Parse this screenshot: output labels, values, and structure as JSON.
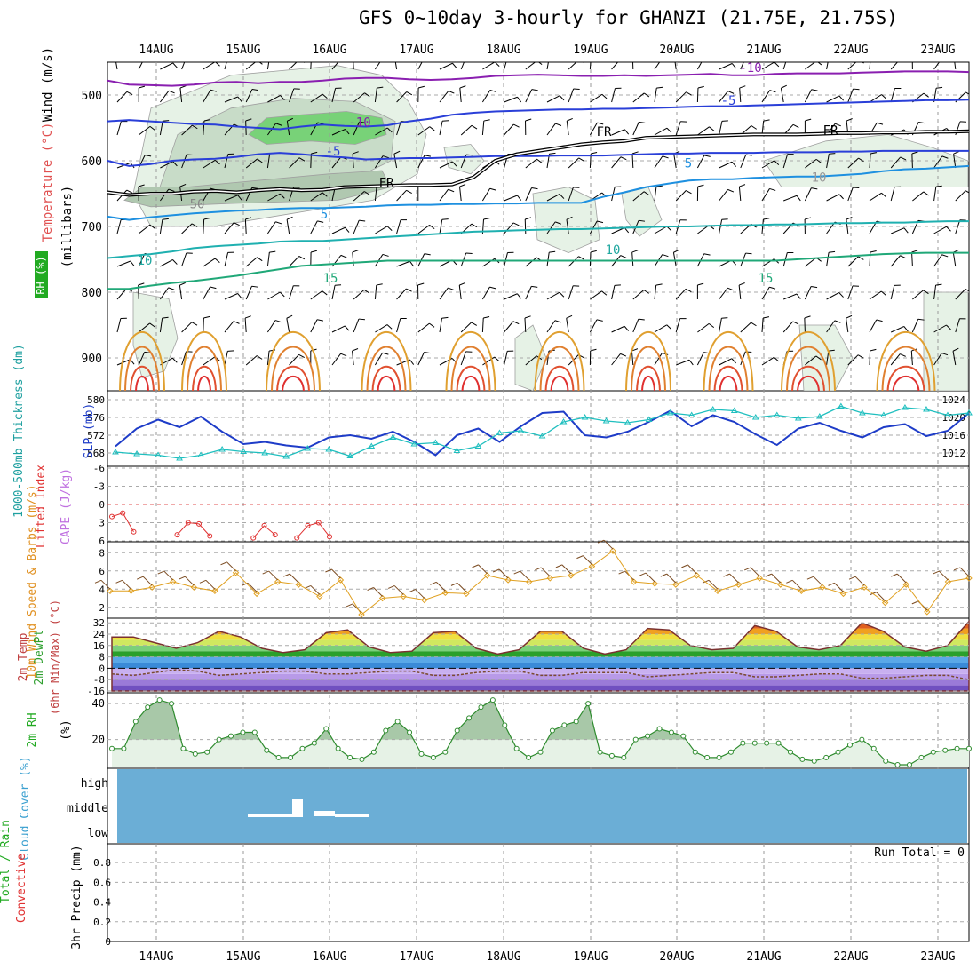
{
  "title": "GFS 0~10day 3-hourly for GHANZI (21.75E, 21.75S)",
  "colors": {
    "wind_label": "#000000",
    "temp_label": "#e05050",
    "rh_label": "#22aa22",
    "thickness_label": "#1fa0a0",
    "slp_label": "#1e3cc8",
    "lifted_label": "#e03030",
    "cape_label": "#c070e0",
    "wind10_label": "#e09020",
    "cloud_fill": "#6baed6",
    "precip_total": "#22aa22",
    "precip_conv": "#e03030"
  },
  "chart_data": [
    {
      "type": "line",
      "panel": "upper-air",
      "xlabel_ticks": [
        "14AUG",
        "15AUG",
        "16AUG",
        "17AUG",
        "18AUG",
        "19AUG",
        "20AUG",
        "21AUG",
        "22AUG",
        "23AUG"
      ],
      "ylabel": "(millibars)",
      "side_labels": [
        "Wind (m/s)",
        "Temperature (°C)",
        "RH (%)"
      ],
      "ylim": [
        450,
        950
      ],
      "yticks": [
        500,
        600,
        700,
        800,
        900
      ],
      "isotherm_labels": [
        "-10",
        "-10",
        "-5",
        "-5",
        "FR",
        "FR",
        "FR",
        "5",
        "5",
        "10",
        "10",
        "10",
        "15",
        "15",
        "50"
      ],
      "isotherms": [
        {
          "name": "-10",
          "color": "#8a1fb0",
          "p": [
            478,
            484,
            485,
            486,
            484,
            481,
            480,
            482,
            480,
            480,
            478,
            475,
            474,
            474,
            476,
            477,
            476,
            474,
            471,
            470,
            469,
            470,
            471,
            471,
            470,
            471,
            470,
            469,
            468,
            470,
            470,
            468,
            467,
            467,
            467,
            466,
            465,
            464,
            464,
            464,
            465
          ]
        },
        {
          "name": "-15",
          "color": "#2a3fd8",
          "p": [
            540,
            538,
            540,
            542,
            544,
            545,
            548,
            550,
            552,
            548,
            545,
            547,
            548,
            546,
            540,
            536,
            530,
            527,
            525,
            524,
            523,
            522,
            522,
            521,
            521,
            520,
            519,
            518,
            517,
            517,
            516,
            515,
            514,
            513,
            512,
            511,
            510,
            509,
            508,
            508,
            507
          ]
        },
        {
          "name": "-5",
          "color": "#2a3fd8",
          "p": [
            600,
            608,
            605,
            600,
            598,
            597,
            594,
            590,
            588,
            590,
            593,
            595,
            598,
            597,
            596,
            596,
            595,
            594,
            593,
            593,
            593,
            592,
            592,
            592,
            591,
            590,
            589,
            589,
            588,
            588,
            588,
            587,
            587,
            587,
            586,
            586,
            585,
            585,
            585,
            585,
            585
          ]
        },
        {
          "name": "FR",
          "color": "#000000",
          "p": [
            648,
            652,
            650,
            650,
            647,
            646,
            648,
            645,
            643,
            645,
            644,
            640,
            639,
            638,
            637,
            637,
            636,
            625,
            600,
            590,
            585,
            580,
            575,
            572,
            570,
            565,
            564,
            563,
            562,
            561,
            560,
            560,
            560,
            559,
            558,
            558,
            557,
            557,
            556,
            556,
            555
          ]
        },
        {
          "name": "5",
          "color": "#1e90e0",
          "p": [
            685,
            690,
            686,
            683,
            680,
            678,
            676,
            675,
            673,
            672,
            672,
            671,
            670,
            668,
            667,
            667,
            666,
            666,
            665,
            665,
            664,
            664,
            664,
            655,
            648,
            640,
            635,
            630,
            628,
            628,
            626,
            625,
            624,
            624,
            622,
            620,
            616,
            613,
            612,
            610,
            608
          ]
        },
        {
          "name": "10",
          "color": "#1fb0b0",
          "p": [
            748,
            745,
            742,
            738,
            733,
            730,
            728,
            726,
            723,
            722,
            722,
            720,
            718,
            716,
            714,
            712,
            710,
            708,
            707,
            706,
            705,
            704,
            704,
            703,
            702,
            701,
            700,
            700,
            699,
            698,
            698,
            697,
            697,
            696,
            695,
            695,
            694,
            694,
            693,
            692,
            692
          ]
        },
        {
          "name": "15",
          "color": "#20a878",
          "p": [
            795,
            795,
            790,
            786,
            783,
            779,
            775,
            770,
            765,
            760,
            758,
            756,
            754,
            752,
            752,
            752,
            752,
            752,
            752,
            752,
            752,
            752,
            752,
            752,
            752,
            752,
            752,
            752,
            752,
            752,
            752,
            752,
            750,
            748,
            746,
            744,
            742,
            741,
            740,
            740,
            740
          ]
        }
      ],
      "rh_patches": [
        "30-50%",
        "50-70%",
        "70%+"
      ]
    },
    {
      "type": "line",
      "panel": "thickness-slp",
      "side_labels": [
        "1000-500mb Thickness (dm)",
        "SLP (mb)"
      ],
      "left_ticks": [
        "580",
        "576",
        "572",
        "568"
      ],
      "right_ticks": [
        "1024",
        "1020",
        "1016",
        "1012"
      ],
      "series": [
        {
          "name": "SLP",
          "color": "#1e3cc8",
          "units": "mb",
          "values": [
            1013.5,
            1017.5,
            1019.5,
            1017.8,
            1020.2,
            1016.8,
            1014.0,
            1014.5,
            1013.7,
            1013.2,
            1015.5,
            1016.0,
            1015.2,
            1016.8,
            1014.5,
            1011.5,
            1016.0,
            1017.5,
            1014.5,
            1018.0,
            1021.0,
            1021.3,
            1016.0,
            1015.5,
            1016.8,
            1019.0,
            1021.5,
            1018.0,
            1020.5,
            1019.0,
            1016.2,
            1013.8,
            1017.5,
            1018.8,
            1017.0,
            1015.5,
            1017.8,
            1018.5,
            1015.8,
            1017.0,
            1021.0
          ]
        },
        {
          "name": "Thickness",
          "color": "#1fbfbf",
          "units": "dm",
          "values": [
            568.2,
            567.8,
            567.5,
            566.8,
            567.5,
            568.8,
            568.3,
            568.0,
            567.2,
            569.0,
            568.8,
            567.3,
            569.5,
            571.5,
            570.0,
            570.3,
            568.5,
            569.5,
            572.5,
            573.0,
            571.8,
            575.0,
            576.0,
            575.2,
            574.8,
            575.5,
            577.0,
            576.5,
            577.8,
            577.5,
            576.0,
            576.5,
            575.8,
            576.2,
            578.5,
            577.0,
            576.5,
            578.2,
            577.8,
            576.5,
            577.0
          ]
        }
      ]
    },
    {
      "type": "line",
      "panel": "stability",
      "side_labels": [
        "Lifted Index",
        "CAPE (J/kg)"
      ],
      "left_ticks": [
        "-6",
        "-3",
        "0",
        "3",
        "6"
      ],
      "series": [
        {
          "name": "Lifted Index",
          "color": "#e03030",
          "values": [
            2.0,
            1.4,
            4.5,
            null,
            null,
            null,
            5.0,
            3.0,
            3.2,
            5.2,
            null,
            null,
            null,
            5.5,
            3.5,
            5.0,
            null,
            5.5,
            3.5,
            3.0,
            5.3
          ]
        }
      ]
    },
    {
      "type": "line",
      "panel": "wind10m",
      "side_labels": [
        "10m Wind Speed & Barbs (m/s)"
      ],
      "left_ticks": [
        "8",
        "6",
        "4",
        "2"
      ],
      "series": [
        {
          "name": "10m Wind Speed",
          "color": "#e0a020",
          "units": "m/s",
          "values": [
            3.8,
            3.8,
            4.2,
            4.8,
            4.2,
            3.8,
            5.8,
            3.5,
            4.8,
            4.5,
            3.2,
            5.0,
            1.2,
            3.0,
            3.2,
            2.8,
            3.6,
            3.5,
            5.5,
            5.0,
            4.8,
            5.2,
            5.5,
            6.5,
            8.2,
            4.8,
            4.6,
            4.5,
            5.5,
            3.8,
            4.5,
            5.2,
            4.5,
            3.8,
            4.2,
            3.5,
            4.2,
            2.5,
            4.5,
            1.5,
            4.8,
            5.2
          ]
        }
      ]
    },
    {
      "type": "area",
      "panel": "temp2m",
      "side_labels": [
        "2m Temp",
        "2m DewPt",
        "(6hr Min/Max) (°C)"
      ],
      "left_ticks": [
        "32",
        "24",
        "16",
        "8",
        "0",
        "-8",
        "-16"
      ],
      "series": [
        {
          "name": "2m Temp",
          "values": [
            22,
            22,
            18,
            14,
            18,
            26,
            22,
            14,
            11,
            13,
            25,
            27,
            15,
            11,
            12,
            25,
            26,
            14,
            10,
            13,
            26,
            26,
            14,
            10,
            13,
            28,
            27,
            16,
            13,
            14,
            30,
            26,
            15,
            13,
            16,
            32,
            26,
            15,
            12,
            16,
            33
          ]
        },
        {
          "name": "2m DewPt",
          "values": [
            -4,
            -5,
            -3,
            -1,
            -2,
            -5,
            -4,
            -3,
            -2,
            -2,
            -4,
            -4,
            -3,
            -2,
            -2,
            -5,
            -5,
            -3,
            -2,
            -2,
            -5,
            -5,
            -3,
            -3,
            -3,
            -6,
            -5,
            -4,
            -3,
            -3,
            -6,
            -6,
            -5,
            -4,
            -4,
            -7,
            -7,
            -6,
            -5,
            -5,
            -8
          ]
        }
      ]
    },
    {
      "type": "area",
      "panel": "rh2m",
      "side_labels": [
        "2m RH",
        "(%)"
      ],
      "left_ticks": [
        "40",
        "20"
      ],
      "series": [
        {
          "name": "2m RH",
          "color": "#2e8b2e",
          "values": [
            15,
            15,
            30,
            38,
            42,
            40,
            15,
            12,
            13,
            20,
            22,
            24,
            24,
            14,
            10,
            10,
            15,
            18,
            26,
            15,
            10,
            9,
            13,
            25,
            30,
            24,
            12,
            10,
            13,
            25,
            32,
            38,
            42,
            28,
            15,
            10,
            13,
            25,
            28,
            30,
            40,
            13,
            11,
            10,
            20,
            22,
            26,
            24,
            22,
            13,
            10,
            10,
            13,
            18,
            18,
            18,
            18,
            13,
            9,
            8,
            10,
            13,
            17,
            20,
            15,
            8,
            6,
            6,
            10,
            13,
            14,
            15,
            15
          ]
        }
      ]
    },
    {
      "type": "bar",
      "panel": "cloud",
      "side_labels": [
        "Cloud Cover (%)"
      ],
      "levels": [
        "high",
        "middle",
        "low"
      ]
    },
    {
      "type": "bar",
      "panel": "precip",
      "side_labels": [
        "Total / Rain",
        "Convective",
        "3hr Precip (mm)"
      ],
      "left_ticks": [
        "0.8",
        "0.6",
        "0.4",
        "0.2",
        "0"
      ],
      "run_total": "Run Total = 0",
      "values": []
    }
  ]
}
